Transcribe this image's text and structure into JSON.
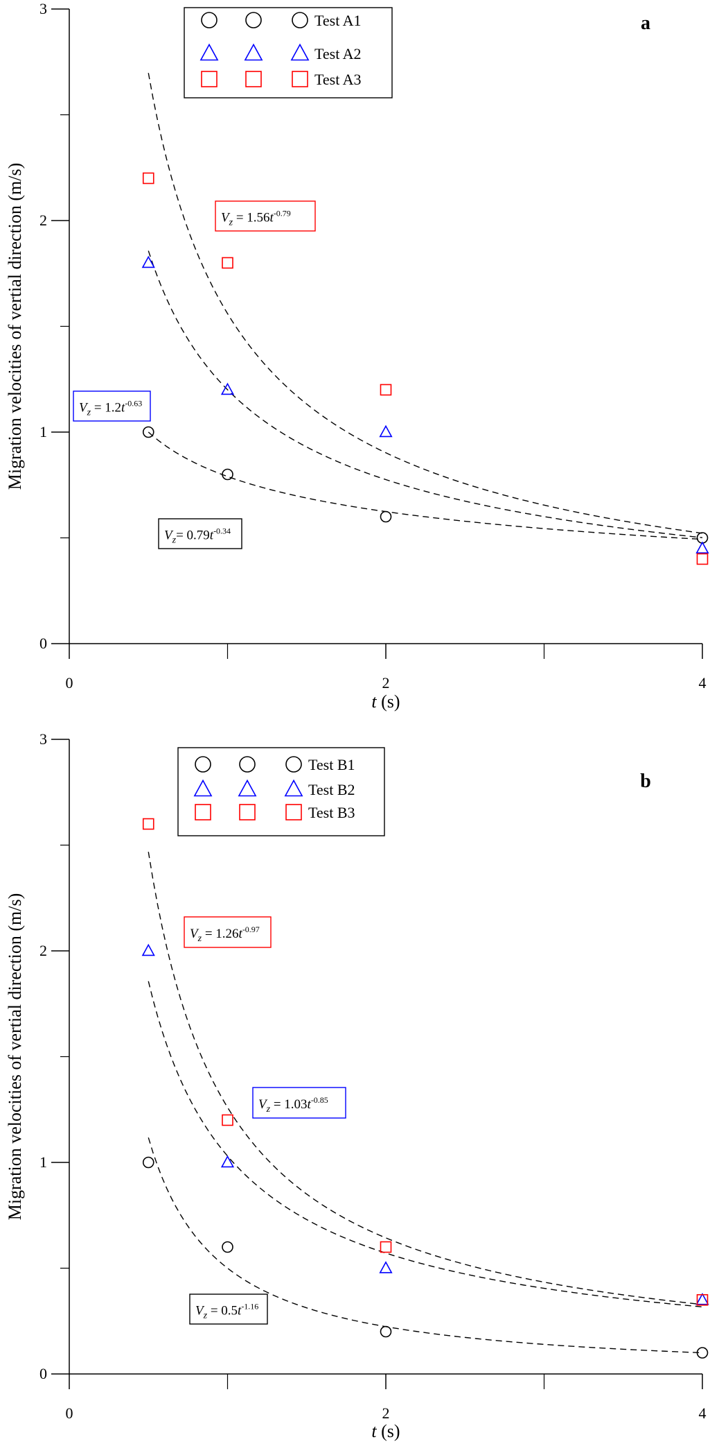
{
  "chart_data": [
    {
      "type": "scatter",
      "panel_label": "a",
      "y_label": "Migration velocities of vertial direction (m/s)",
      "x_label_var": "t",
      "x_label_unit": "(s)",
      "xlim": [
        0,
        4
      ],
      "ylim": [
        0,
        3
      ],
      "xticks": [
        0,
        2,
        4
      ],
      "xminor": [
        1,
        3
      ],
      "yticks": [
        0,
        1,
        2,
        3
      ],
      "yminor": [
        0.5,
        1.5,
        2.5
      ],
      "x": [
        0.5,
        1,
        2,
        4
      ],
      "series": [
        {
          "name": "Test A1",
          "color": "#000000",
          "marker": "circle",
          "values": [
            1.0,
            0.8,
            0.6,
            0.5
          ]
        },
        {
          "name": "Test A2",
          "color": "#0000ff",
          "marker": "triangle",
          "values": [
            1.8,
            1.2,
            1.0,
            0.45
          ]
        },
        {
          "name": "Test A3",
          "color": "#ff0000",
          "marker": "square",
          "values": [
            2.2,
            1.8,
            1.2,
            0.4
          ]
        }
      ],
      "fits": [
        {
          "coef": 1.56,
          "exp": -0.79,
          "box_color": "#ff0000",
          "equation": {
            "lhs": "V",
            "sub": "z",
            "rhs": " = 1.56",
            "var": "t",
            "sup": "-0.79"
          }
        },
        {
          "coef": 1.2,
          "exp": -0.63,
          "box_color": "#0000ff",
          "equation": {
            "lhs": "V",
            "sub": "z",
            "rhs": " = 1.2",
            "var": "t",
            "sup": "-0.63"
          }
        },
        {
          "coef": 0.79,
          "exp": -0.34,
          "box_color": "#000000",
          "equation": {
            "lhs": "V",
            "sub": "z",
            "rhs": "= 0.79",
            "var": "t",
            "sup": "-0.34"
          }
        }
      ]
    },
    {
      "type": "scatter",
      "panel_label": "b",
      "y_label": "Migration velocities of vertial direction (m/s)",
      "x_label_var": "t",
      "x_label_unit": "(s)",
      "xlim": [
        0,
        4
      ],
      "ylim": [
        0,
        3
      ],
      "xticks": [
        0,
        2,
        4
      ],
      "xminor": [
        1,
        3
      ],
      "yticks": [
        0,
        1,
        2,
        3
      ],
      "yminor": [
        0.5,
        1.5,
        2.5
      ],
      "x": [
        0.5,
        1,
        2,
        4
      ],
      "series": [
        {
          "name": "Test B1",
          "color": "#000000",
          "marker": "circle",
          "values": [
            1.0,
            0.6,
            0.2,
            0.1
          ]
        },
        {
          "name": "Test B2",
          "color": "#0000ff",
          "marker": "triangle",
          "values": [
            2.0,
            1.0,
            0.5,
            0.35
          ]
        },
        {
          "name": "Test B3",
          "color": "#ff0000",
          "marker": "square",
          "values": [
            2.6,
            1.2,
            0.6,
            0.35
          ]
        }
      ],
      "fits": [
        {
          "coef": 1.26,
          "exp": -0.97,
          "box_color": "#ff0000",
          "equation": {
            "lhs": "V",
            "sub": "z",
            "rhs": " = 1.26",
            "var": "t",
            "sup": "-0.97"
          }
        },
        {
          "coef": 1.03,
          "exp": -0.85,
          "box_color": "#0000ff",
          "equation": {
            "lhs": "V",
            "sub": "z",
            "rhs": " = 1.03",
            "var": "t",
            "sup": "-0.85"
          }
        },
        {
          "coef": 0.5,
          "exp": -1.16,
          "box_color": "#000000",
          "equation": {
            "lhs": "V",
            "sub": "z",
            "rhs": " = 0.5",
            "var": "t",
            "sup": "-1.16"
          }
        }
      ]
    }
  ]
}
